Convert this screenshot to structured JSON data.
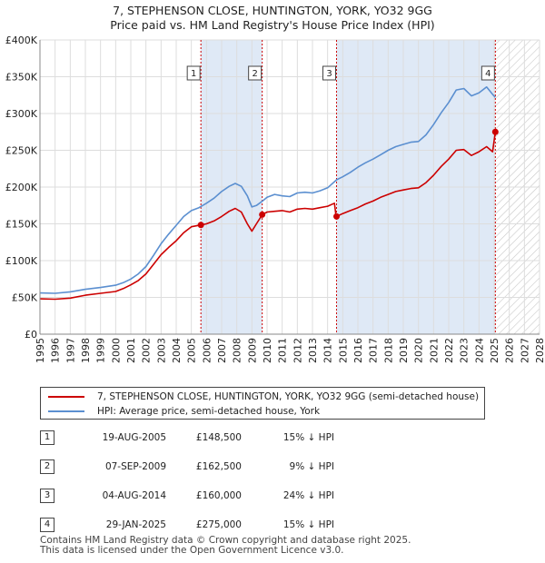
{
  "chart_data": {
    "type": "line",
    "title": "7, STEPHENSON CLOSE, HUNTINGTON, YORK, YO32 9GG",
    "subtitle": "Price paid vs. HM Land Registry's House Price Index (HPI)",
    "xlim": [
      1995,
      2028
    ],
    "ylim": [
      0,
      400000
    ],
    "yticks": [
      0,
      50000,
      100000,
      150000,
      200000,
      250000,
      300000,
      350000,
      400000
    ],
    "ytick_labels": [
      "£0",
      "£50K",
      "£100K",
      "£150K",
      "£200K",
      "£250K",
      "£300K",
      "£350K",
      "£400K"
    ],
    "xticks": [
      "1995",
      "1996",
      "1997",
      "1998",
      "1999",
      "2000",
      "2001",
      "2002",
      "2003",
      "2004",
      "2005",
      "2006",
      "2007",
      "2008",
      "2009",
      "2010",
      "2011",
      "2012",
      "2013",
      "2014",
      "2015",
      "2016",
      "2017",
      "2018",
      "2019",
      "2020",
      "2021",
      "2022",
      "2023",
      "2024",
      "2025",
      "2026",
      "2027",
      "2028"
    ],
    "grid": true,
    "future_hatch_from": 2025.1,
    "colors": {
      "price": "#cc0000",
      "hpi": "#5b8fd0",
      "band": "#dfe9f6",
      "hatch": "#c8c8c8"
    },
    "series": [
      {
        "name": "7, STEPHENSON CLOSE, HUNTINGTON, YORK, YO32 9GG (semi-detached house)",
        "color": "#cc0000",
        "points": [
          [
            1995.0,
            48000
          ],
          [
            1996.0,
            47500
          ],
          [
            1997.0,
            49000
          ],
          [
            1998.0,
            53000
          ],
          [
            1999.0,
            55500
          ],
          [
            2000.0,
            58000
          ],
          [
            2000.5,
            62000
          ],
          [
            2001.0,
            67000
          ],
          [
            2001.5,
            73000
          ],
          [
            2002.0,
            82000
          ],
          [
            2002.5,
            95000
          ],
          [
            2003.0,
            108000
          ],
          [
            2003.5,
            118000
          ],
          [
            2004.0,
            127000
          ],
          [
            2004.5,
            138000
          ],
          [
            2005.0,
            146000
          ],
          [
            2005.63,
            148500
          ],
          [
            2006.0,
            150000
          ],
          [
            2006.5,
            154000
          ],
          [
            2007.0,
            160000
          ],
          [
            2007.5,
            167000
          ],
          [
            2007.9,
            171000
          ],
          [
            2008.3,
            166000
          ],
          [
            2008.7,
            150000
          ],
          [
            2009.0,
            140000
          ],
          [
            2009.3,
            150000
          ],
          [
            2009.68,
            162500
          ],
          [
            2010.0,
            166000
          ],
          [
            2010.5,
            167000
          ],
          [
            2011.0,
            168000
          ],
          [
            2011.5,
            166000
          ],
          [
            2012.0,
            170000
          ],
          [
            2012.5,
            171000
          ],
          [
            2013.0,
            170000
          ],
          [
            2013.5,
            172000
          ],
          [
            2014.0,
            174000
          ],
          [
            2014.45,
            178000
          ],
          [
            2014.55,
            162000
          ],
          [
            2014.59,
            160000
          ],
          [
            2015.0,
            164000
          ],
          [
            2015.5,
            168000
          ],
          [
            2016.0,
            172000
          ],
          [
            2016.5,
            177000
          ],
          [
            2017.0,
            181000
          ],
          [
            2017.5,
            186000
          ],
          [
            2018.0,
            190000
          ],
          [
            2018.5,
            194000
          ],
          [
            2019.0,
            196000
          ],
          [
            2019.5,
            198000
          ],
          [
            2020.0,
            199000
          ],
          [
            2020.5,
            206000
          ],
          [
            2021.0,
            216000
          ],
          [
            2021.5,
            228000
          ],
          [
            2022.0,
            238000
          ],
          [
            2022.5,
            250000
          ],
          [
            2023.0,
            251000
          ],
          [
            2023.5,
            243000
          ],
          [
            2024.0,
            248000
          ],
          [
            2024.5,
            255000
          ],
          [
            2024.9,
            248000
          ],
          [
            2025.08,
            275000
          ]
        ]
      },
      {
        "name": "HPI: Average price, semi-detached house, York",
        "color": "#5b8fd0",
        "points": [
          [
            1995.0,
            56000
          ],
          [
            1996.0,
            55500
          ],
          [
            1997.0,
            57500
          ],
          [
            1998.0,
            61000
          ],
          [
            1999.0,
            63500
          ],
          [
            2000.0,
            66500
          ],
          [
            2000.5,
            70000
          ],
          [
            2001.0,
            75000
          ],
          [
            2001.5,
            82000
          ],
          [
            2002.0,
            92000
          ],
          [
            2002.5,
            107000
          ],
          [
            2003.0,
            123000
          ],
          [
            2003.5,
            136000
          ],
          [
            2004.0,
            148000
          ],
          [
            2004.5,
            160000
          ],
          [
            2005.0,
            168000
          ],
          [
            2005.5,
            172000
          ],
          [
            2006.0,
            178000
          ],
          [
            2006.5,
            185000
          ],
          [
            2007.0,
            194000
          ],
          [
            2007.5,
            201000
          ],
          [
            2007.9,
            205000
          ],
          [
            2008.3,
            201000
          ],
          [
            2008.7,
            188000
          ],
          [
            2009.0,
            173000
          ],
          [
            2009.3,
            175000
          ],
          [
            2009.7,
            181000
          ],
          [
            2010.0,
            186000
          ],
          [
            2010.5,
            190000
          ],
          [
            2011.0,
            188000
          ],
          [
            2011.5,
            187000
          ],
          [
            2012.0,
            192000
          ],
          [
            2012.5,
            193000
          ],
          [
            2013.0,
            192000
          ],
          [
            2013.5,
            195000
          ],
          [
            2014.0,
            199000
          ],
          [
            2014.6,
            210000
          ],
          [
            2015.0,
            214000
          ],
          [
            2015.5,
            220000
          ],
          [
            2016.0,
            227000
          ],
          [
            2016.5,
            233000
          ],
          [
            2017.0,
            238000
          ],
          [
            2017.5,
            244000
          ],
          [
            2018.0,
            250000
          ],
          [
            2018.5,
            255000
          ],
          [
            2019.0,
            258000
          ],
          [
            2019.5,
            261000
          ],
          [
            2020.0,
            262000
          ],
          [
            2020.5,
            271000
          ],
          [
            2021.0,
            285000
          ],
          [
            2021.5,
            301000
          ],
          [
            2022.0,
            315000
          ],
          [
            2022.5,
            332000
          ],
          [
            2023.0,
            334000
          ],
          [
            2023.5,
            324000
          ],
          [
            2024.0,
            328000
          ],
          [
            2024.5,
            336000
          ],
          [
            2024.9,
            326000
          ],
          [
            2025.08,
            322000
          ]
        ]
      }
    ],
    "sales": [
      {
        "label": "1",
        "date": "19-AUG-2005",
        "x": 2005.63,
        "price": 148500,
        "price_label": "£148,500",
        "hpi": "15% ↓ HPI"
      },
      {
        "label": "2",
        "date": "07-SEP-2009",
        "x": 2009.68,
        "price": 162500,
        "price_label": "£162,500",
        "hpi": "9% ↓ HPI"
      },
      {
        "label": "3",
        "date": "04-AUG-2014",
        "x": 2014.59,
        "price": 160000,
        "price_label": "£160,000",
        "hpi": "24% ↓ HPI"
      },
      {
        "label": "4",
        "date": "29-JAN-2025",
        "x": 2025.08,
        "price": 275000,
        "price_label": "£275,000",
        "hpi": "15% ↓ HPI"
      }
    ],
    "bands": [
      [
        2005.63,
        2009.68
      ],
      [
        2014.59,
        2025.08
      ]
    ]
  },
  "legend": {
    "price_label": "7, STEPHENSON CLOSE, HUNTINGTON, YORK, YO32 9GG (semi-detached house)",
    "hpi_label": "HPI: Average price, semi-detached house, York"
  },
  "footer": {
    "line1": "Contains HM Land Registry data © Crown copyright and database right 2025.",
    "line2": "This data is licensed under the Open Government Licence v3.0."
  }
}
